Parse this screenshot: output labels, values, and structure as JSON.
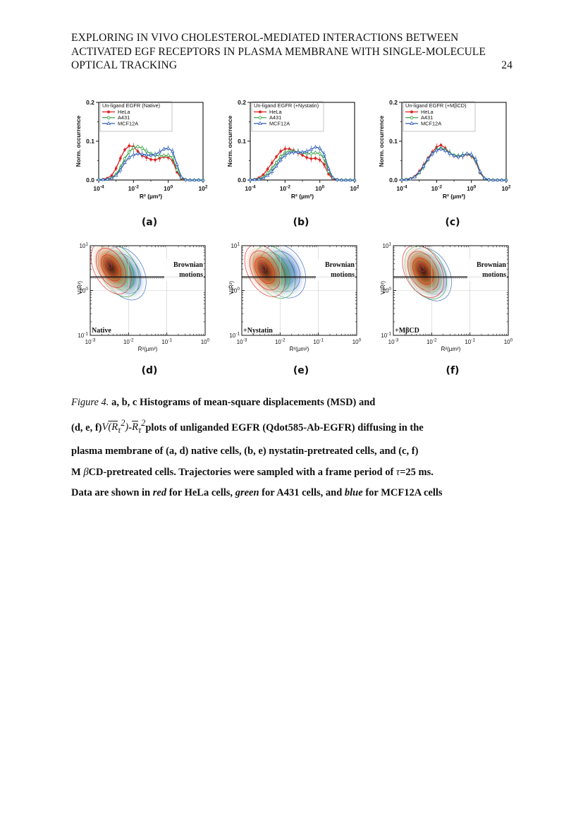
{
  "header": {
    "line1": "EXPLORING IN VIVO CHOLESTEROL-MEDIATED INTERACTIONS BETWEEN",
    "line2": "ACTIVATED EGF RECEPTORS IN PLASMA MEMBRANE WITH SINGLE-MOLECULE",
    "line3": "OPTICAL TRACKING",
    "page_number": "24"
  },
  "colors": {
    "HeLa": "#e02020",
    "A431": "#2e9e3a",
    "MCF12A": "#2f5fb8"
  },
  "chart_data": [
    {
      "type": "line",
      "panel_label": "(a)",
      "legend_title": "Un-ligand EGFR (Native)",
      "xlabel": "R² (µm²)",
      "ylabel": "Norm. occurrence",
      "xscale": "log",
      "xlim": [
        0.0001,
        100
      ],
      "ylim": [
        0,
        0.2
      ],
      "x_ticks": [
        "10⁻⁴",
        "10⁻²",
        "10⁰",
        "10²"
      ],
      "y_ticks": [
        "0.0",
        "0.1",
        "0.2"
      ],
      "legend": [
        "HeLa",
        "A431",
        "MCF12A"
      ],
      "log10_x": [
        -4,
        -3.75,
        -3.5,
        -3.25,
        -3,
        -2.75,
        -2.5,
        -2.25,
        -2,
        -1.75,
        -1.5,
        -1.25,
        -1,
        -0.75,
        -0.5,
        -0.25,
        0,
        0.25,
        0.5,
        0.75,
        1,
        1.25,
        1.5,
        1.75,
        2
      ],
      "series": [
        {
          "name": "HeLa",
          "values": [
            0.001,
            0.002,
            0.005,
            0.012,
            0.03,
            0.056,
            0.078,
            0.088,
            0.086,
            0.074,
            0.063,
            0.058,
            0.053,
            0.052,
            0.056,
            0.06,
            0.058,
            0.05,
            0.02,
            0.004,
            0.001,
            0,
            0,
            0,
            0
          ]
        },
        {
          "name": "A431",
          "values": [
            0.001,
            0.001,
            0.002,
            0.006,
            0.015,
            0.032,
            0.055,
            0.072,
            0.083,
            0.086,
            0.082,
            0.074,
            0.068,
            0.064,
            0.062,
            0.063,
            0.063,
            0.058,
            0.026,
            0.006,
            0.001,
            0,
            0,
            0,
            0
          ]
        },
        {
          "name": "MCF12A",
          "values": [
            0.001,
            0.001,
            0.002,
            0.005,
            0.012,
            0.026,
            0.045,
            0.058,
            0.065,
            0.068,
            0.067,
            0.065,
            0.064,
            0.066,
            0.072,
            0.08,
            0.082,
            0.074,
            0.04,
            0.008,
            0.001,
            0,
            0,
            0,
            0
          ]
        }
      ]
    },
    {
      "type": "line",
      "panel_label": "(b)",
      "legend_title": "Un-ligand EGFR (+Nystatin)",
      "xlabel": "R² (µm²)",
      "ylabel": "Norm. occurrence",
      "xscale": "log",
      "xlim": [
        0.0001,
        100
      ],
      "ylim": [
        0,
        0.2
      ],
      "x_ticks": [
        "10⁻⁴",
        "10⁻²",
        "10⁰",
        "10²"
      ],
      "y_ticks": [
        "0.0",
        "0.1",
        "0.2"
      ],
      "legend": [
        "HeLa",
        "A431",
        "MCF12A"
      ],
      "log10_x": [
        -4,
        -3.75,
        -3.5,
        -3.25,
        -3,
        -2.75,
        -2.5,
        -2.25,
        -2,
        -1.75,
        -1.5,
        -1.25,
        -1,
        -0.75,
        -0.5,
        -0.25,
        0,
        0.25,
        0.5,
        0.75,
        1,
        1.25,
        1.5,
        1.75,
        2
      ],
      "series": [
        {
          "name": "HeLa",
          "values": [
            0.001,
            0.002,
            0.006,
            0.014,
            0.028,
            0.044,
            0.06,
            0.074,
            0.08,
            0.08,
            0.076,
            0.07,
            0.064,
            0.058,
            0.055,
            0.056,
            0.052,
            0.04,
            0.015,
            0.003,
            0.001,
            0,
            0,
            0,
            0
          ]
        },
        {
          "name": "A431",
          "values": [
            0.001,
            0.001,
            0.003,
            0.008,
            0.018,
            0.03,
            0.045,
            0.06,
            0.07,
            0.075,
            0.074,
            0.072,
            0.07,
            0.068,
            0.068,
            0.07,
            0.068,
            0.055,
            0.022,
            0.005,
            0.001,
            0,
            0,
            0,
            0
          ]
        },
        {
          "name": "MCF12A",
          "values": [
            0.001,
            0.001,
            0.002,
            0.005,
            0.012,
            0.022,
            0.036,
            0.052,
            0.064,
            0.07,
            0.072,
            0.072,
            0.072,
            0.074,
            0.079,
            0.085,
            0.082,
            0.066,
            0.03,
            0.006,
            0.001,
            0,
            0,
            0,
            0
          ]
        }
      ]
    },
    {
      "type": "line",
      "panel_label": "(c)",
      "legend_title": "Un-ligand EGFR (+MβCD)",
      "xlabel": "R² (µm²)",
      "ylabel": "Norm. occurrence",
      "xscale": "log",
      "xlim": [
        0.0001,
        100
      ],
      "ylim": [
        0,
        0.2
      ],
      "x_ticks": [
        "10⁻⁴",
        "10⁻²",
        "10⁰",
        "10²"
      ],
      "y_ticks": [
        "0.0",
        "0.1",
        "0.2"
      ],
      "legend": [
        "HeLa",
        "A431",
        "MCF12A"
      ],
      "log10_x": [
        -4,
        -3.75,
        -3.5,
        -3.25,
        -3,
        -2.75,
        -2.5,
        -2.25,
        -2,
        -1.75,
        -1.5,
        -1.25,
        -1,
        -0.75,
        -0.5,
        -0.25,
        0,
        0.25,
        0.5,
        0.75,
        1,
        1.25,
        1.5,
        1.75,
        2
      ],
      "series": [
        {
          "name": "HeLa",
          "values": [
            0.001,
            0.002,
            0.004,
            0.01,
            0.022,
            0.038,
            0.056,
            0.072,
            0.085,
            0.09,
            0.082,
            0.07,
            0.062,
            0.06,
            0.062,
            0.066,
            0.062,
            0.048,
            0.018,
            0.004,
            0.001,
            0,
            0,
            0,
            0
          ]
        },
        {
          "name": "A431",
          "values": [
            0.001,
            0.001,
            0.003,
            0.008,
            0.018,
            0.034,
            0.052,
            0.068,
            0.078,
            0.082,
            0.078,
            0.07,
            0.064,
            0.062,
            0.064,
            0.067,
            0.064,
            0.05,
            0.02,
            0.004,
            0.001,
            0,
            0,
            0,
            0
          ]
        },
        {
          "name": "MCF12A",
          "values": [
            0.001,
            0.001,
            0.003,
            0.008,
            0.02,
            0.036,
            0.054,
            0.068,
            0.077,
            0.08,
            0.076,
            0.069,
            0.063,
            0.06,
            0.063,
            0.068,
            0.066,
            0.053,
            0.022,
            0.005,
            0.001,
            0,
            0,
            0,
            0
          ]
        }
      ]
    },
    {
      "type": "heatmap",
      "panel_label": "(d)",
      "annotation": "Native",
      "threshold_label": [
        "Brownian",
        "motions"
      ],
      "xscale": "log",
      "yscale": "log",
      "xlim": [
        0.001,
        1
      ],
      "ylim": [
        0.1,
        10
      ],
      "threshold_y": 2,
      "x_ticks": [
        "10⁻³",
        "10⁻²",
        "10⁻¹",
        "10⁰"
      ],
      "y_ticks": [
        "10¹",
        "10⁰",
        "10⁻¹"
      ],
      "xlabel": "R̄²(µm²)",
      "ylabel": "V(R̄²)",
      "density_centers": [
        {
          "series": "HeLa",
          "x": 0.0035,
          "y": 3.2
        },
        {
          "series": "A431",
          "x": 0.0055,
          "y": 2.8
        },
        {
          "series": "MCF12A",
          "x": 0.008,
          "y": 2.4
        }
      ]
    },
    {
      "type": "heatmap",
      "panel_label": "(e)",
      "annotation": "+Nystatin",
      "threshold_label": [
        "Brownian",
        "motions"
      ],
      "xscale": "log",
      "yscale": "log",
      "xlim": [
        0.001,
        1
      ],
      "ylim": [
        0.1,
        10
      ],
      "threshold_y": 2,
      "x_ticks": [
        "10⁻³",
        "10⁻²",
        "10⁻¹",
        "10⁰"
      ],
      "y_ticks": [
        "10¹",
        "10⁰",
        "10⁻¹"
      ],
      "xlabel": "R̄²(µm²)",
      "ylabel": "V(R̄²)",
      "density_centers": [
        {
          "series": "HeLa",
          "x": 0.004,
          "y": 2.8
        },
        {
          "series": "A431",
          "x": 0.007,
          "y": 2.6
        },
        {
          "series": "MCF12A",
          "x": 0.012,
          "y": 2.7
        }
      ]
    },
    {
      "type": "heatmap",
      "panel_label": "(f)",
      "annotation": "+MβCD",
      "threshold_label": [
        "Brownian",
        "motions"
      ],
      "xscale": "log",
      "yscale": "log",
      "xlim": [
        0.001,
        1
      ],
      "ylim": [
        0.1,
        10
      ],
      "threshold_y": 2,
      "x_ticks": [
        "10⁻³",
        "10⁻²",
        "10⁻¹",
        "10⁰"
      ],
      "y_ticks": [
        "10¹",
        "10⁰",
        "10⁻¹"
      ],
      "xlabel": "R̄²(µm²)",
      "ylabel": "V(R̄²)",
      "density_centers": [
        {
          "series": "HeLa",
          "x": 0.006,
          "y": 2.7
        },
        {
          "series": "A431",
          "x": 0.007,
          "y": 2.5
        },
        {
          "series": "MCF12A",
          "x": 0.009,
          "y": 2.3
        }
      ]
    }
  ],
  "caption": {
    "fig_label": "Figure 4.",
    "l1": "a, b, c Histograms of mean-square displacements (MSD) and",
    "l2_pre": "(d, e, f)",
    "l2_math_v": "V",
    "l2_math_arg": "(R",
    "l2_math_sub": "τ",
    "l2_math_close": ")",
    "l2_dash": "-",
    "l2_math_r": "R",
    "l2_math_sub2": "τ",
    "l2_post": "plots of unliganded EGFR (Qdot585-Ab-EGFR) diffusing in the",
    "l3": "plasma membrane of (a, d) native cells, (b, e) nystatin-pretreated cells, and (c, f)",
    "l4_pre": "M",
    "l4_beta": "β",
    "l4_mid": "CD-pretreated cells. Trajectories were sampled with a frame period of",
    "l4_tau": "τ",
    "l4_post": "=25 ms.",
    "l5_a": "Data are shown in",
    "l5_red": "red",
    "l5_b": "for HeLa cells,",
    "l5_green": "green",
    "l5_c": "for A431 cells, and",
    "l5_blue": "blue",
    "l5_d": "for MCF12A cells"
  }
}
